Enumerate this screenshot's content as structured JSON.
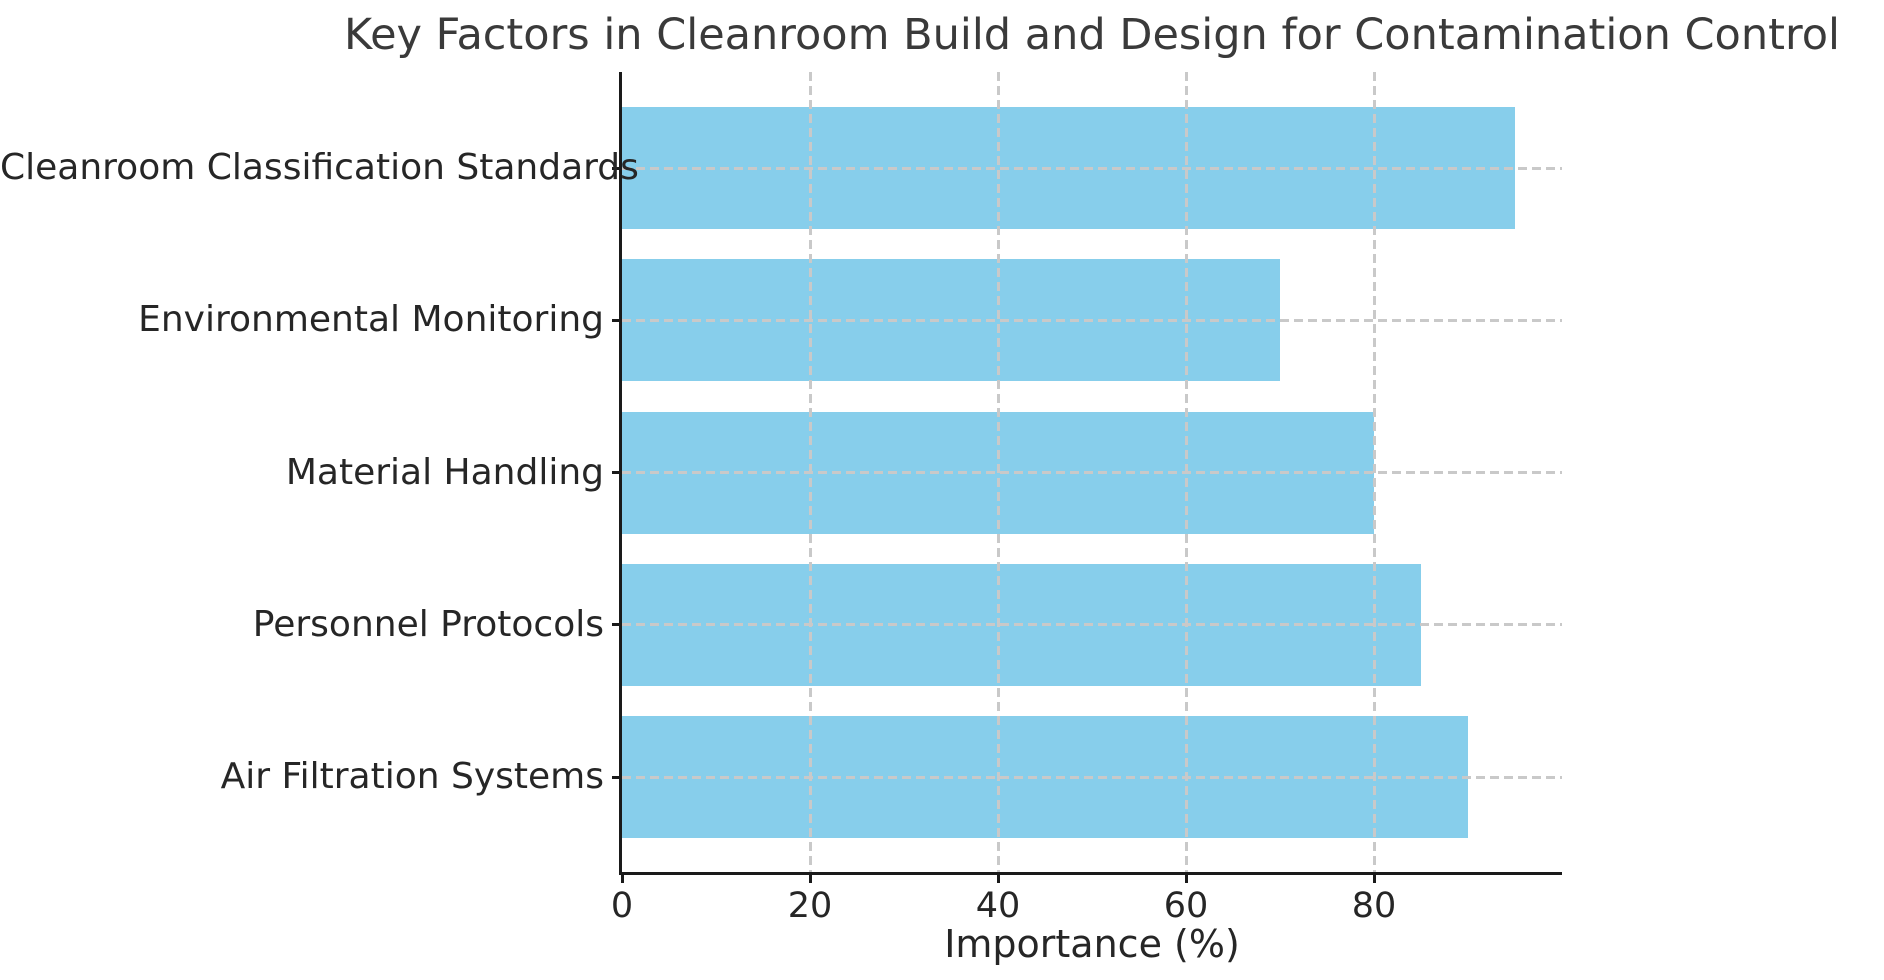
{
  "chart_data": {
    "type": "bar",
    "orientation": "horizontal",
    "title": "Key Factors in Cleanroom Build and Design for Contamination Control",
    "categories": [
      "Cleanroom Classification Standards",
      "Environmental Monitoring",
      "Material Handling",
      "Personnel Protocols",
      "Air Filtration Systems"
    ],
    "values": [
      95,
      70,
      80,
      85,
      90
    ],
    "xlabel": "Importance (%)",
    "ylabel": "",
    "x_ticks": [
      0,
      20,
      40,
      60,
      80
    ],
    "xlim": [
      0,
      100
    ],
    "bar_color": "#87CEEB",
    "grid": {
      "style": "dashed",
      "color": "#c9c9c9",
      "axes": "both",
      "drawn_above_bars": true
    },
    "legend_position": "none",
    "background_color": "#ffffff"
  }
}
